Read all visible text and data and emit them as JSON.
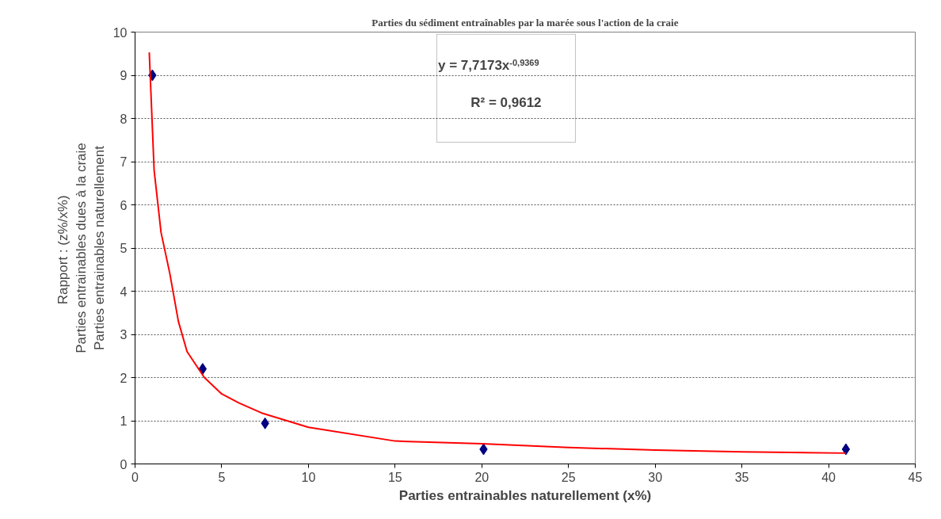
{
  "chart_data": {
    "type": "scatter",
    "title": "Parties du sédiment entraînables par la marée sous l'action de la craie",
    "xlabel": "Parties entrainables naturellement (x%)",
    "ylabel": "Rapport :  (z%/x%)\nParties entrainables dues à la craie\nParties entrainables naturellement",
    "series": [
      {
        "color": "#000080",
        "marker": "diamond",
        "x": [
          1,
          3.9,
          7.5,
          20.1,
          41
        ],
        "values": [
          9,
          2.2,
          0.94,
          0.34,
          0.34
        ]
      },
      {
        "type": "line",
        "color": "#ff0000",
        "line_style": "solid",
        "marker": "none",
        "x": [
          0.82,
          1.1,
          1.5,
          2,
          2.5,
          3,
          4,
          5,
          6,
          7.3,
          10,
          15,
          20,
          25,
          30,
          35,
          41
        ],
        "values": [
          9.53,
          6.8,
          5.36,
          4.42,
          3.3,
          2.6,
          2.0,
          1.62,
          1.41,
          1.18,
          0.85,
          0.53,
          0.47,
          0.38,
          0.32,
          0.28,
          0.25
        ]
      }
    ],
    "annotations": [
      "y = 7,7173x$^{-0,9369}$",
      "R² = 0,9612"
    ],
    "xlim": [
      0,
      45
    ],
    "xticks": [
      0,
      5,
      10,
      15,
      20,
      25,
      30,
      35,
      40,
      45
    ],
    "ylim": [
      0,
      10
    ],
    "yticks": [
      0,
      1,
      2,
      3,
      4,
      5,
      6,
      7,
      8,
      9,
      10
    ],
    "grid": "y"
  }
}
